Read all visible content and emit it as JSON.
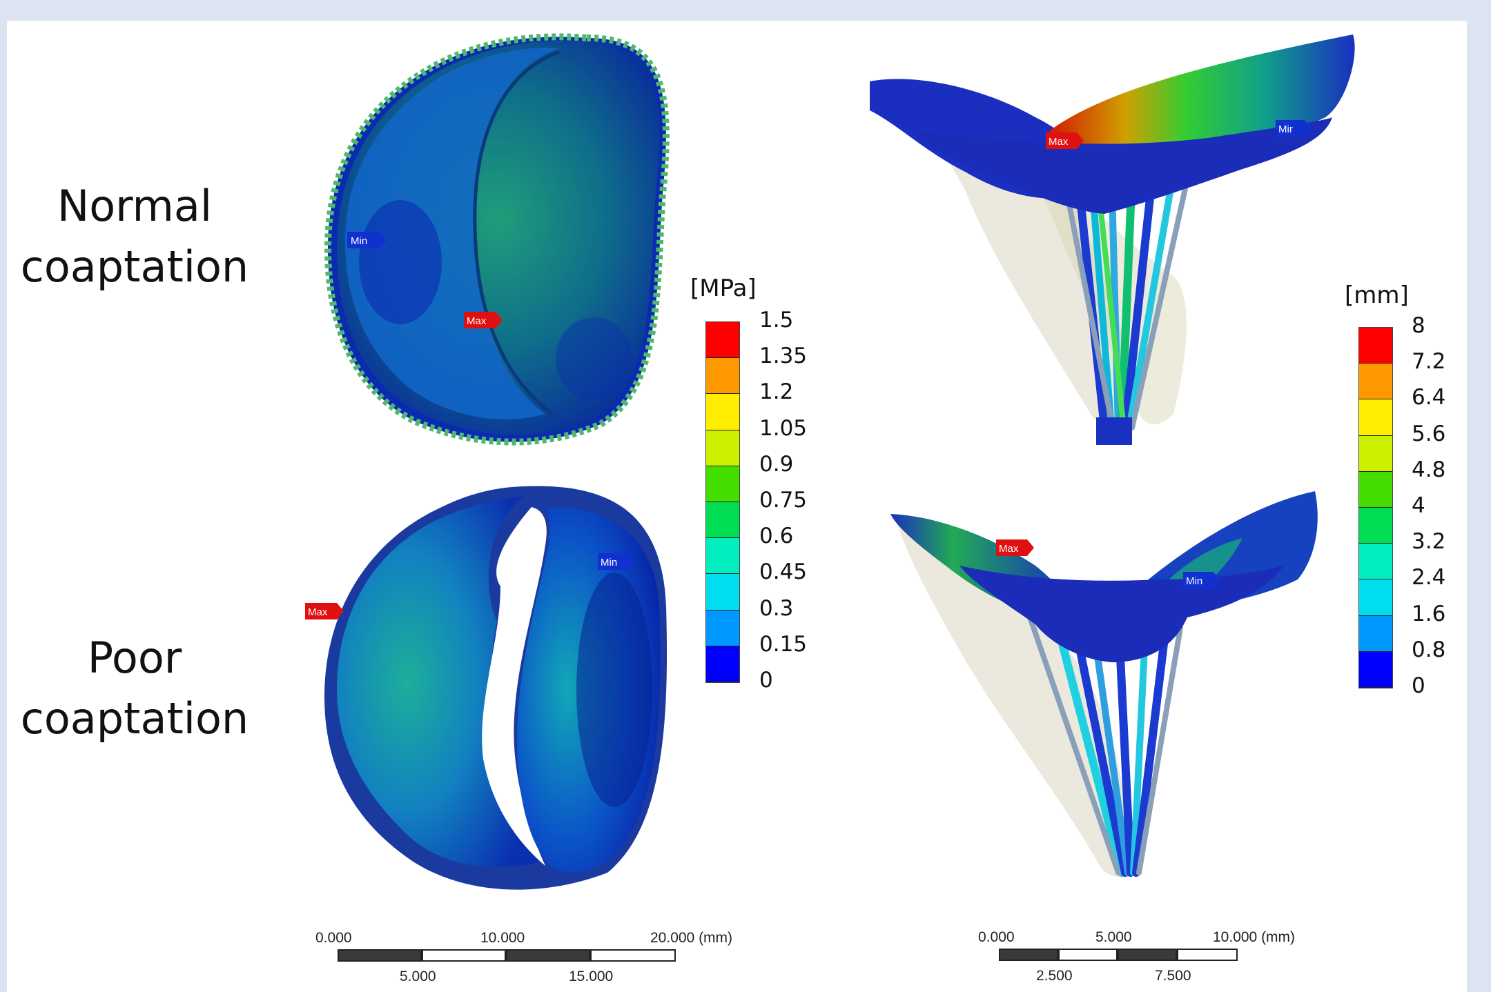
{
  "rows": {
    "top": [
      "Normal",
      "coaptation"
    ],
    "bottom": [
      "Poor",
      "coaptation"
    ]
  },
  "stress_legend": {
    "unit": "[MPa]",
    "ticks": [
      "1.5",
      "1.35",
      "1.2",
      "1.05",
      "0.9",
      "0.75",
      "0.6",
      "0.45",
      "0.3",
      "0.15",
      "0"
    ],
    "colors": [
      "#ff0000",
      "#ff9900",
      "#ffee00",
      "#ccf000",
      "#44dd00",
      "#00dd55",
      "#00eec0",
      "#00ddee",
      "#0099ff",
      "#0000ff"
    ]
  },
  "disp_legend": {
    "unit": "[mm]",
    "ticks": [
      "8",
      "7.2",
      "6.4",
      "5.6",
      "4.8",
      "4",
      "3.2",
      "2.4",
      "1.6",
      "0.8",
      "0"
    ],
    "colors": [
      "#ff0000",
      "#ff9900",
      "#ffee00",
      "#ccf000",
      "#44dd00",
      "#00dd55",
      "#00eec0",
      "#00ddee",
      "#0099ff",
      "#0000ff"
    ]
  },
  "markers": {
    "min": "Min",
    "max": "Max",
    "min_cut": "Mir"
  },
  "scalebar_left": {
    "top": [
      "0.000",
      "10.000",
      "20.000 (mm)"
    ],
    "bottom": [
      "5.000",
      "15.000"
    ]
  },
  "scalebar_right": {
    "top": [
      "0.000",
      "5.000",
      "10.000 (mm)"
    ],
    "bottom": [
      "2.500",
      "7.500"
    ]
  }
}
